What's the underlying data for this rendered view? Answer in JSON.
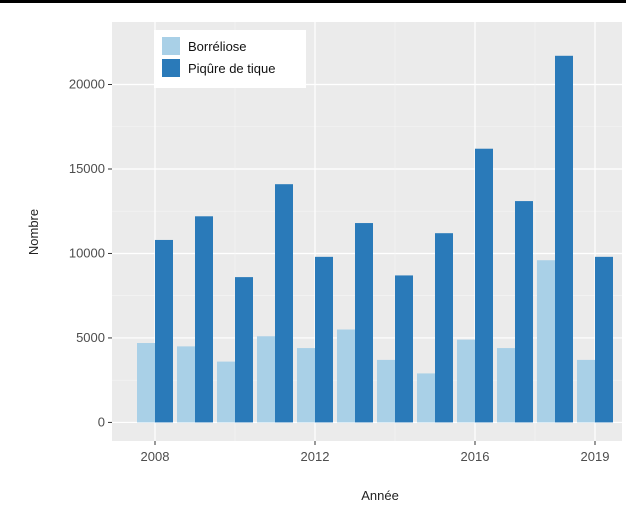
{
  "chart_data": {
    "type": "bar",
    "xlabel": "Année",
    "ylabel": "Nombre",
    "categories": [
      "2008",
      "2009",
      "2010",
      "2011",
      "2012",
      "2013",
      "2014",
      "2015",
      "2016",
      "2017",
      "2018",
      "2019"
    ],
    "x_ticks": [
      "2008",
      "2012",
      "2016",
      "2019"
    ],
    "y_ticks": [
      "0",
      "5000",
      "10000",
      "15000",
      "20000"
    ],
    "ylim": [
      -1100,
      23700
    ],
    "grid": true,
    "legend_position": "top-left",
    "series": [
      {
        "name": "Borréliose",
        "color": "#a9d0e7",
        "values": [
          4700,
          4500,
          3600,
          5100,
          4400,
          5500,
          3700,
          2900,
          4900,
          4400,
          9600,
          3700
        ]
      },
      {
        "name": "Piqûre de tique",
        "color": "#2a7ab9",
        "values": [
          10800,
          12200,
          8600,
          14100,
          9800,
          11800,
          8700,
          11200,
          16200,
          13100,
          21700,
          9800
        ]
      }
    ]
  }
}
